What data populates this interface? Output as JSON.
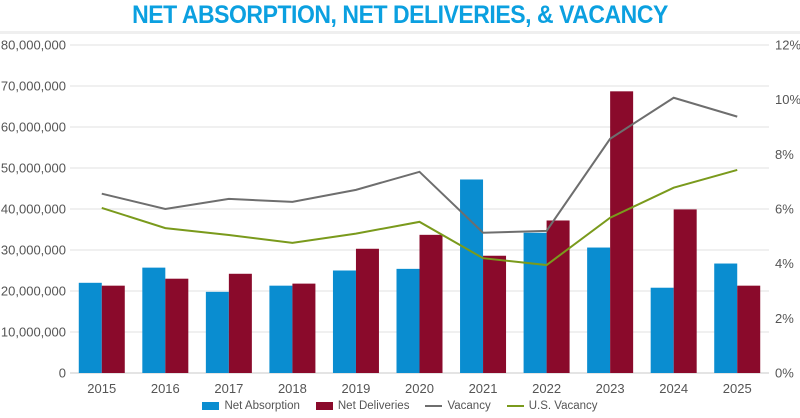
{
  "chart_data": {
    "type": "bar",
    "title": "NET ABSORPTION, NET DELIVERIES, & VACANCY",
    "xlabel": "",
    "ylabel": "",
    "y2label": "",
    "categories": [
      "2015",
      "2016",
      "2017",
      "2018",
      "2019",
      "2020",
      "2021",
      "2022",
      "2023",
      "2024",
      "2025"
    ],
    "ylim": [
      0,
      80000000
    ],
    "y2lim": [
      0,
      12
    ],
    "yticks": [
      "0",
      "10,000,000",
      "20,000,000",
      "30,000,000",
      "40,000,000",
      "50,000,000",
      "60,000,000",
      "70,000,000",
      "80,000,000"
    ],
    "y2ticks": [
      "0%",
      "2%",
      "4%",
      "6%",
      "8%",
      "10%",
      "12%"
    ],
    "grid": true,
    "legend_position": "bottom",
    "series": [
      {
        "name": "Net Absorption",
        "type": "bar",
        "axis": "left",
        "color": "#0a8dd0",
        "values": [
          22000000,
          25700000,
          19800000,
          21300000,
          25000000,
          25400000,
          47200000,
          34200000,
          30600000,
          20800000,
          26700000
        ]
      },
      {
        "name": "Net Deliveries",
        "type": "bar",
        "axis": "left",
        "color": "#8a0a2b",
        "values": [
          21300000,
          23000000,
          24200000,
          21800000,
          30300000,
          33700000,
          28600000,
          37200000,
          68700000,
          39900000,
          21300000
        ]
      },
      {
        "name": "Vacancy",
        "type": "line",
        "axis": "right",
        "color": "#6e6e6e",
        "values": [
          6.56,
          6.0,
          6.37,
          6.26,
          6.7,
          7.36,
          5.13,
          5.2,
          8.57,
          10.07,
          9.38
        ]
      },
      {
        "name": "U.S. Vacancy",
        "type": "line",
        "axis": "right",
        "color": "#7a9a1c",
        "values": [
          6.04,
          5.3,
          5.05,
          4.76,
          5.1,
          5.53,
          4.2,
          3.95,
          5.68,
          6.78,
          7.43
        ]
      }
    ]
  }
}
